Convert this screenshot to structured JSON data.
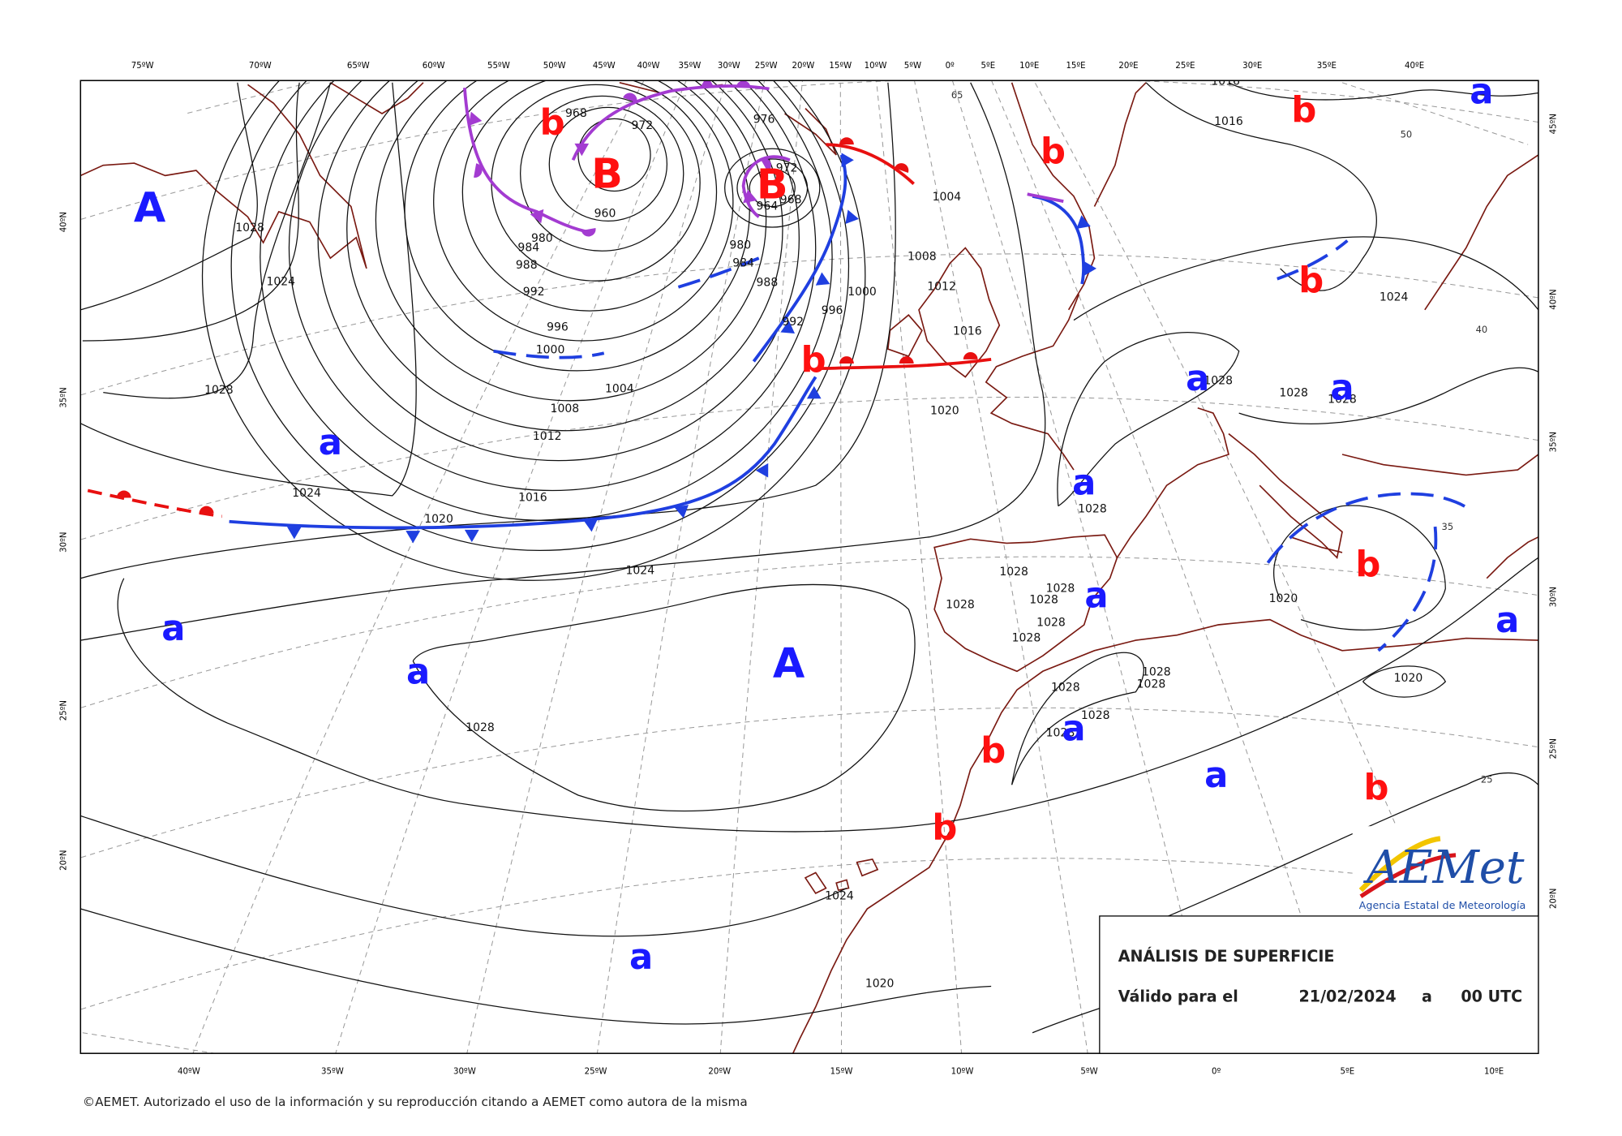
{
  "top_longitudes": [
    "75ºW",
    "70ºW",
    "65ºW",
    "60ºW",
    "55ºW",
    "50ºW",
    "45ºW",
    "40ºW",
    "35ºW",
    "30ºW",
    "25ºW",
    "20ºW",
    "15ºW",
    "10ºW",
    "5ºW",
    "0º",
    "5ºE",
    "10ºE",
    "15ºE",
    "20ºE",
    "25ºE",
    "30ºE",
    "35ºE",
    "40ºE"
  ],
  "bottom_longitudes": [
    "40ºW",
    "35ºW",
    "30ºW",
    "25ºW",
    "20ºW",
    "15ºW",
    "10ºW",
    "5ºW",
    "0º",
    "5ºE",
    "10ºE"
  ],
  "left_latitudes": [
    "40ºN",
    "35ºN",
    "30ºN",
    "25ºN",
    "20ºN"
  ],
  "right_latitudes": [
    "45ºN",
    "40ºN",
    "35ºN",
    "30ºN",
    "25ºN",
    "20ºN"
  ],
  "isobar_labels": [
    "1028",
    "1024",
    "1028",
    "1024",
    "1020",
    "1016",
    "1012",
    "1008",
    "1004",
    "1000",
    "996",
    "992",
    "988",
    "984",
    "980",
    "968",
    "972",
    "976",
    "972",
    "968",
    "964",
    "960",
    "980",
    "984",
    "988",
    "992",
    "996",
    "1000",
    "1004",
    "1008",
    "1012",
    "1016",
    "1020",
    "1024",
    "1028",
    "1028",
    "1028",
    "1028",
    "1028",
    "1028",
    "1028",
    "1028",
    "1028",
    "1028",
    "1028",
    "1028",
    "1028",
    "1028",
    "1028",
    "1028",
    "1020",
    "1020",
    "1024",
    "1020",
    "1024",
    "1016",
    "1016"
  ],
  "grid_labels": [
    "65",
    "50",
    "40",
    "35",
    "25"
  ],
  "centers": [
    {
      "label": "A",
      "color": "#1a1aff"
    },
    {
      "label": "B",
      "color": "#ff1010"
    },
    {
      "label": "B",
      "color": "#ff1010"
    },
    {
      "label": "b",
      "color": "#ff1010"
    },
    {
      "label": "b",
      "color": "#ff1010"
    },
    {
      "label": "b",
      "color": "#ff1010"
    },
    {
      "label": "b",
      "color": "#ff1010"
    },
    {
      "label": "b",
      "color": "#ff1010"
    },
    {
      "label": "b",
      "color": "#ff1010"
    },
    {
      "label": "b",
      "color": "#ff1010"
    },
    {
      "label": "b",
      "color": "#ff1010"
    },
    {
      "label": "b",
      "color": "#ff1010"
    },
    {
      "label": "a",
      "color": "#1a1aff"
    },
    {
      "label": "a",
      "color": "#1a1aff"
    },
    {
      "label": "a",
      "color": "#1a1aff"
    },
    {
      "label": "a",
      "color": "#1a1aff"
    },
    {
      "label": "A",
      "color": "#1a1aff"
    },
    {
      "label": "a",
      "color": "#1a1aff"
    },
    {
      "label": "a",
      "color": "#1a1aff"
    },
    {
      "label": "a",
      "color": "#1a1aff"
    },
    {
      "label": "a",
      "color": "#1a1aff"
    },
    {
      "label": "a",
      "color": "#1a1aff"
    },
    {
      "label": "a",
      "color": "#1a1aff"
    },
    {
      "label": "a",
      "color": "#1a1aff"
    },
    {
      "label": "a",
      "color": "#1a1aff"
    }
  ],
  "info_box": {
    "title": "ANÁLISIS DE SUPERFICIE",
    "valid_label": "Válido para el",
    "date": "21/02/2024",
    "separator": "a",
    "time": "00 UTC"
  },
  "logo": {
    "name": "AEMet",
    "subtitle": "Agencia Estatal de Meteorología"
  },
  "copyright": "©AEMET. Autorizado el uso de la información y su reproducción citando a AEMET como autora de la misma"
}
